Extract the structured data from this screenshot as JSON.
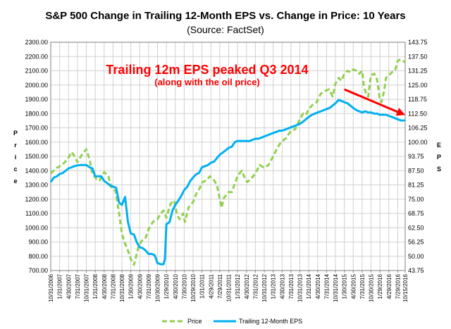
{
  "chart_data": {
    "type": "line",
    "title": "S&P 500 Change in Trailing 12-Month EPS vs. Change in Price: 10 Years",
    "subtitle": "(Source: FactSet)",
    "ylabel_left": "Price",
    "ylabel_right": "EPS",
    "ylim_left": [
      700,
      2300
    ],
    "yticks_left": [
      "700.00",
      "800.00",
      "900.00",
      "1000.00",
      "1100.00",
      "1200.00",
      "1300.00",
      "1400.00",
      "1500.00",
      "1600.00",
      "1700.00",
      "1800.00",
      "1900.00",
      "2000.00",
      "2100.00",
      "2200.00",
      "2300.00"
    ],
    "ylim_right": [
      43.75,
      143.75
    ],
    "yticks_right": [
      "43.75",
      "50.00",
      "56.25",
      "62.50",
      "68.75",
      "75.00",
      "81.25",
      "87.50",
      "93.75",
      "100.00",
      "106.25",
      "112.50",
      "118.75",
      "125.00",
      "131.25",
      "137.50",
      "143.75"
    ],
    "xlim": [
      2006.83,
      2016.79
    ],
    "xticks": [
      {
        "label": "10/31/2006",
        "x": 2006.83
      },
      {
        "label": "1/31/2007",
        "x": 2007.08
      },
      {
        "label": "4/30/2007",
        "x": 2007.33
      },
      {
        "label": "7/31/2007",
        "x": 2007.58
      },
      {
        "label": "10/31/2007",
        "x": 2007.83
      },
      {
        "label": "1/31/2008",
        "x": 2008.08
      },
      {
        "label": "4/30/2008",
        "x": 2008.33
      },
      {
        "label": "7/31/2008",
        "x": 2008.58
      },
      {
        "label": "10/31/2008",
        "x": 2008.83
      },
      {
        "label": "1/30/2009",
        "x": 2009.08
      },
      {
        "label": "4/30/2009",
        "x": 2009.33
      },
      {
        "label": "7/31/2009",
        "x": 2009.58
      },
      {
        "label": "10/30/2009",
        "x": 2009.83
      },
      {
        "label": "1/29/2010",
        "x": 2010.08
      },
      {
        "label": "4/30/2010",
        "x": 2010.33
      },
      {
        "label": "7/30/2010",
        "x": 2010.58
      },
      {
        "label": "10/29/2010",
        "x": 2010.83
      },
      {
        "label": "1/31/2011",
        "x": 2011.08
      },
      {
        "label": "4/29/2011",
        "x": 2011.33
      },
      {
        "label": "7/29/2011",
        "x": 2011.58
      },
      {
        "label": "10/31/2011",
        "x": 2011.83
      },
      {
        "label": "1/31/2012",
        "x": 2012.08
      },
      {
        "label": "4/30/2012",
        "x": 2012.33
      },
      {
        "label": "7/31/2012",
        "x": 2012.58
      },
      {
        "label": "10/31/2012",
        "x": 2012.83
      },
      {
        "label": "1/31/2013",
        "x": 2013.08
      },
      {
        "label": "4/30/2013",
        "x": 2013.33
      },
      {
        "label": "7/31/2013",
        "x": 2013.58
      },
      {
        "label": "10/31/2013",
        "x": 2013.83
      },
      {
        "label": "1/31/2014",
        "x": 2014.08
      },
      {
        "label": "4/30/2014",
        "x": 2014.33
      },
      {
        "label": "7/31/2014",
        "x": 2014.58
      },
      {
        "label": "10/31/2014",
        "x": 2014.83
      },
      {
        "label": "1/30/2015",
        "x": 2015.08
      },
      {
        "label": "4/30/2015",
        "x": 2015.33
      },
      {
        "label": "7/31/2015",
        "x": 2015.58
      },
      {
        "label": "10/30/2015",
        "x": 2015.83
      },
      {
        "label": "1/29/2016",
        "x": 2016.08
      },
      {
        "label": "4/29/2016",
        "x": 2016.33
      },
      {
        "label": "7/29/2016",
        "x": 2016.58
      },
      {
        "label": "10/15/2016",
        "x": 2016.79
      }
    ],
    "grid": true,
    "legend_position": "bottom",
    "series": [
      {
        "name": "Price",
        "axis": "left",
        "color": "#92d050",
        "style": "dashed",
        "points": [
          [
            2006.83,
            1380
          ],
          [
            2007.0,
            1420
          ],
          [
            2007.15,
            1440
          ],
          [
            2007.3,
            1480
          ],
          [
            2007.42,
            1530
          ],
          [
            2007.5,
            1500
          ],
          [
            2007.58,
            1460
          ],
          [
            2007.7,
            1510
          ],
          [
            2007.83,
            1550
          ],
          [
            2007.92,
            1480
          ],
          [
            2008.0,
            1380
          ],
          [
            2008.12,
            1340
          ],
          [
            2008.2,
            1330
          ],
          [
            2008.33,
            1390
          ],
          [
            2008.45,
            1360
          ],
          [
            2008.55,
            1270
          ],
          [
            2008.65,
            1260
          ],
          [
            2008.75,
            1100
          ],
          [
            2008.83,
            960
          ],
          [
            2008.9,
            900
          ],
          [
            2009.0,
            840
          ],
          [
            2009.08,
            780
          ],
          [
            2009.17,
            740
          ],
          [
            2009.3,
            870
          ],
          [
            2009.42,
            920
          ],
          [
            2009.5,
            930
          ],
          [
            2009.58,
            990
          ],
          [
            2009.7,
            1040
          ],
          [
            2009.83,
            1060
          ],
          [
            2009.92,
            1100
          ],
          [
            2010.0,
            1120
          ],
          [
            2010.08,
            1070
          ],
          [
            2010.2,
            1170
          ],
          [
            2010.3,
            1190
          ],
          [
            2010.38,
            1090
          ],
          [
            2010.45,
            1060
          ],
          [
            2010.55,
            1100
          ],
          [
            2010.6,
            1040
          ],
          [
            2010.7,
            1140
          ],
          [
            2010.83,
            1180
          ],
          [
            2010.92,
            1240
          ],
          [
            2011.0,
            1270
          ],
          [
            2011.1,
            1320
          ],
          [
            2011.2,
            1330
          ],
          [
            2011.3,
            1360
          ],
          [
            2011.4,
            1340
          ],
          [
            2011.5,
            1300
          ],
          [
            2011.58,
            1200
          ],
          [
            2011.63,
            1140
          ],
          [
            2011.7,
            1210
          ],
          [
            2011.83,
            1250
          ],
          [
            2011.92,
            1250
          ],
          [
            2012.0,
            1310
          ],
          [
            2012.1,
            1370
          ],
          [
            2012.2,
            1400
          ],
          [
            2012.28,
            1350
          ],
          [
            2012.35,
            1320
          ],
          [
            2012.45,
            1340
          ],
          [
            2012.58,
            1380
          ],
          [
            2012.7,
            1440
          ],
          [
            2012.83,
            1420
          ],
          [
            2012.95,
            1440
          ],
          [
            2013.08,
            1500
          ],
          [
            2013.2,
            1560
          ],
          [
            2013.3,
            1600
          ],
          [
            2013.45,
            1630
          ],
          [
            2013.58,
            1680
          ],
          [
            2013.7,
            1690
          ],
          [
            2013.83,
            1760
          ],
          [
            2013.92,
            1800
          ],
          [
            2014.0,
            1790
          ],
          [
            2014.08,
            1830
          ],
          [
            2014.18,
            1860
          ],
          [
            2014.3,
            1880
          ],
          [
            2014.42,
            1940
          ],
          [
            2014.55,
            1960
          ],
          [
            2014.65,
            1970
          ],
          [
            2014.75,
            1920
          ],
          [
            2014.83,
            2010
          ],
          [
            2014.92,
            2050
          ],
          [
            2015.0,
            2030
          ],
          [
            2015.08,
            2080
          ],
          [
            2015.17,
            2100
          ],
          [
            2015.25,
            2090
          ],
          [
            2015.33,
            2110
          ],
          [
            2015.42,
            2100
          ],
          [
            2015.5,
            2080
          ],
          [
            2015.58,
            2100
          ],
          [
            2015.63,
            1990
          ],
          [
            2015.7,
            1930
          ],
          [
            2015.75,
            1920
          ],
          [
            2015.83,
            2070
          ],
          [
            2015.92,
            2080
          ],
          [
            2016.0,
            2040
          ],
          [
            2016.08,
            1900
          ],
          [
            2016.12,
            1880
          ],
          [
            2016.2,
            1960
          ],
          [
            2016.25,
            2050
          ],
          [
            2016.33,
            2070
          ],
          [
            2016.42,
            2090
          ],
          [
            2016.5,
            2100
          ],
          [
            2016.58,
            2170
          ],
          [
            2016.66,
            2180
          ],
          [
            2016.79,
            2160
          ]
        ]
      },
      {
        "name": "Trailing 12-Month EPS",
        "axis": "right",
        "color": "#00b0f0",
        "style": "solid",
        "points": [
          [
            2006.83,
            82.5
          ],
          [
            2006.92,
            84.5
          ],
          [
            2007.0,
            85
          ],
          [
            2007.08,
            86
          ],
          [
            2007.17,
            86.5
          ],
          [
            2007.25,
            87.5
          ],
          [
            2007.33,
            88.5
          ],
          [
            2007.42,
            89
          ],
          [
            2007.5,
            89.5
          ],
          [
            2007.58,
            89.8
          ],
          [
            2007.67,
            90
          ],
          [
            2007.75,
            90
          ],
          [
            2007.83,
            90
          ],
          [
            2007.92,
            89
          ],
          [
            2008.0,
            88.5
          ],
          [
            2008.08,
            85
          ],
          [
            2008.17,
            85
          ],
          [
            2008.25,
            85
          ],
          [
            2008.33,
            83
          ],
          [
            2008.42,
            82
          ],
          [
            2008.5,
            81
          ],
          [
            2008.58,
            80.5
          ],
          [
            2008.67,
            80
          ],
          [
            2008.75,
            73.5
          ],
          [
            2008.83,
            72.5
          ],
          [
            2008.92,
            76
          ],
          [
            2009.0,
            65
          ],
          [
            2009.08,
            60
          ],
          [
            2009.17,
            59.5
          ],
          [
            2009.25,
            56
          ],
          [
            2009.33,
            54
          ],
          [
            2009.42,
            53.5
          ],
          [
            2009.5,
            52.5
          ],
          [
            2009.58,
            51
          ],
          [
            2009.67,
            51
          ],
          [
            2009.75,
            50.5
          ],
          [
            2009.83,
            47
          ],
          [
            2009.92,
            46.5
          ],
          [
            2010.0,
            46.5
          ],
          [
            2010.04,
            49
          ],
          [
            2010.08,
            64
          ],
          [
            2010.17,
            65
          ],
          [
            2010.25,
            70
          ],
          [
            2010.33,
            72.5
          ],
          [
            2010.42,
            74.5
          ],
          [
            2010.5,
            76.5
          ],
          [
            2010.58,
            79
          ],
          [
            2010.67,
            80.5
          ],
          [
            2010.75,
            83
          ],
          [
            2010.83,
            84.5
          ],
          [
            2010.92,
            86
          ],
          [
            2011.0,
            86.5
          ],
          [
            2011.08,
            89
          ],
          [
            2011.17,
            89.5
          ],
          [
            2011.25,
            90
          ],
          [
            2011.33,
            91
          ],
          [
            2011.42,
            91.5
          ],
          [
            2011.5,
            93
          ],
          [
            2011.58,
            94.5
          ],
          [
            2011.67,
            95.5
          ],
          [
            2011.75,
            96.5
          ],
          [
            2011.83,
            97.5
          ],
          [
            2011.92,
            98
          ],
          [
            2012.0,
            100
          ],
          [
            2012.08,
            100.5
          ],
          [
            2012.17,
            100.5
          ],
          [
            2012.25,
            100.5
          ],
          [
            2012.33,
            100.5
          ],
          [
            2012.42,
            100.5
          ],
          [
            2012.5,
            101
          ],
          [
            2012.58,
            101.5
          ],
          [
            2012.67,
            101.5
          ],
          [
            2012.75,
            102
          ],
          [
            2012.83,
            102.5
          ],
          [
            2012.92,
            103
          ],
          [
            2013.08,
            104
          ],
          [
            2013.17,
            104.5
          ],
          [
            2013.25,
            105
          ],
          [
            2013.33,
            105
          ],
          [
            2013.42,
            105.5
          ],
          [
            2013.5,
            106
          ],
          [
            2013.58,
            106.5
          ],
          [
            2013.67,
            107
          ],
          [
            2013.75,
            107.5
          ],
          [
            2013.83,
            108
          ],
          [
            2013.92,
            109
          ],
          [
            2014.0,
            110
          ],
          [
            2014.08,
            111
          ],
          [
            2014.17,
            112
          ],
          [
            2014.25,
            112.5
          ],
          [
            2014.33,
            113
          ],
          [
            2014.42,
            113.5
          ],
          [
            2014.5,
            114
          ],
          [
            2014.58,
            114.5
          ],
          [
            2014.67,
            115
          ],
          [
            2014.75,
            116
          ],
          [
            2014.83,
            117
          ],
          [
            2014.92,
            118.5
          ],
          [
            2015.0,
            118
          ],
          [
            2015.08,
            117.5
          ],
          [
            2015.17,
            117
          ],
          [
            2015.25,
            116
          ],
          [
            2015.33,
            115
          ],
          [
            2015.42,
            114
          ],
          [
            2015.5,
            113.5
          ],
          [
            2015.58,
            113
          ],
          [
            2015.67,
            113.5
          ],
          [
            2015.75,
            113
          ],
          [
            2015.83,
            113
          ],
          [
            2015.92,
            112.5
          ],
          [
            2016.0,
            112.5
          ],
          [
            2016.08,
            112
          ],
          [
            2016.17,
            112
          ],
          [
            2016.25,
            112
          ],
          [
            2016.33,
            111.5
          ],
          [
            2016.42,
            111
          ],
          [
            2016.5,
            110.5
          ],
          [
            2016.58,
            110
          ],
          [
            2016.67,
            109.5
          ],
          [
            2016.79,
            109.5
          ]
        ]
      }
    ],
    "annotations": [
      {
        "text": "Trailing 12m EPS peaked Q3 2014",
        "color": "#ff0000"
      },
      {
        "text": "(along with the oil price)",
        "color": "#ff0000"
      }
    ],
    "trend_arrow": {
      "color": "#ff0000",
      "from": [
        2015.08,
        1970
      ],
      "to": [
        2016.79,
        1790
      ]
    }
  }
}
